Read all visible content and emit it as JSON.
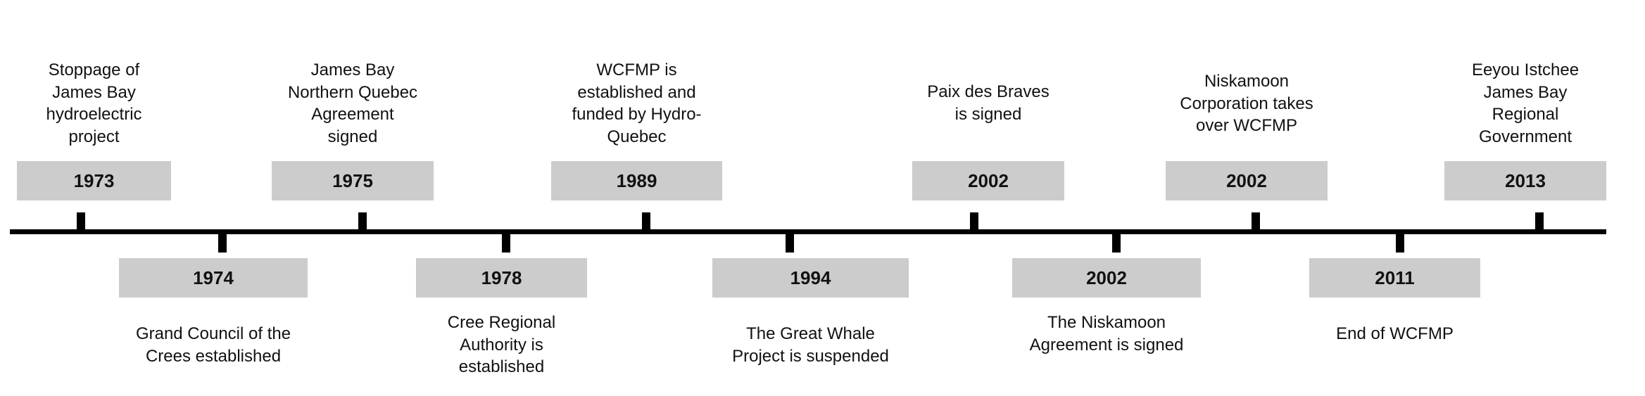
{
  "timeline": {
    "axis_color": "#000000",
    "box_color": "#cccccc",
    "events": [
      {
        "year": "1973",
        "description": "Stoppage of\nJames Bay\nhydroelectric\nproject",
        "position": "above"
      },
      {
        "year": "1974",
        "description": "Grand Council of the\nCrees established",
        "position": "below"
      },
      {
        "year": "1975",
        "description": "James Bay\nNorthern Quebec\nAgreement\nsigned",
        "position": "above"
      },
      {
        "year": "1978",
        "description": "Cree Regional\nAuthority is\nestablished",
        "position": "below"
      },
      {
        "year": "1989",
        "description": "WCFMP is\nestablished and\nfunded by Hydro-\nQuebec",
        "position": "above"
      },
      {
        "year": "1994",
        "description": "The Great Whale\nProject is suspended",
        "position": "below"
      },
      {
        "year": "2002",
        "description": "Paix des Braves\nis signed",
        "position": "above"
      },
      {
        "year": "2002",
        "description": "The Niskamoon\nAgreement is signed",
        "position": "below"
      },
      {
        "year": "2002",
        "description": "Niskamoon\nCorporation takes\nover WCFMP",
        "position": "above"
      },
      {
        "year": "2011",
        "description": "End of WCFMP",
        "position": "below"
      },
      {
        "year": "2013",
        "description": "Eeyou Istchee\nJames Bay\nRegional\nGovernment",
        "position": "above"
      }
    ]
  }
}
